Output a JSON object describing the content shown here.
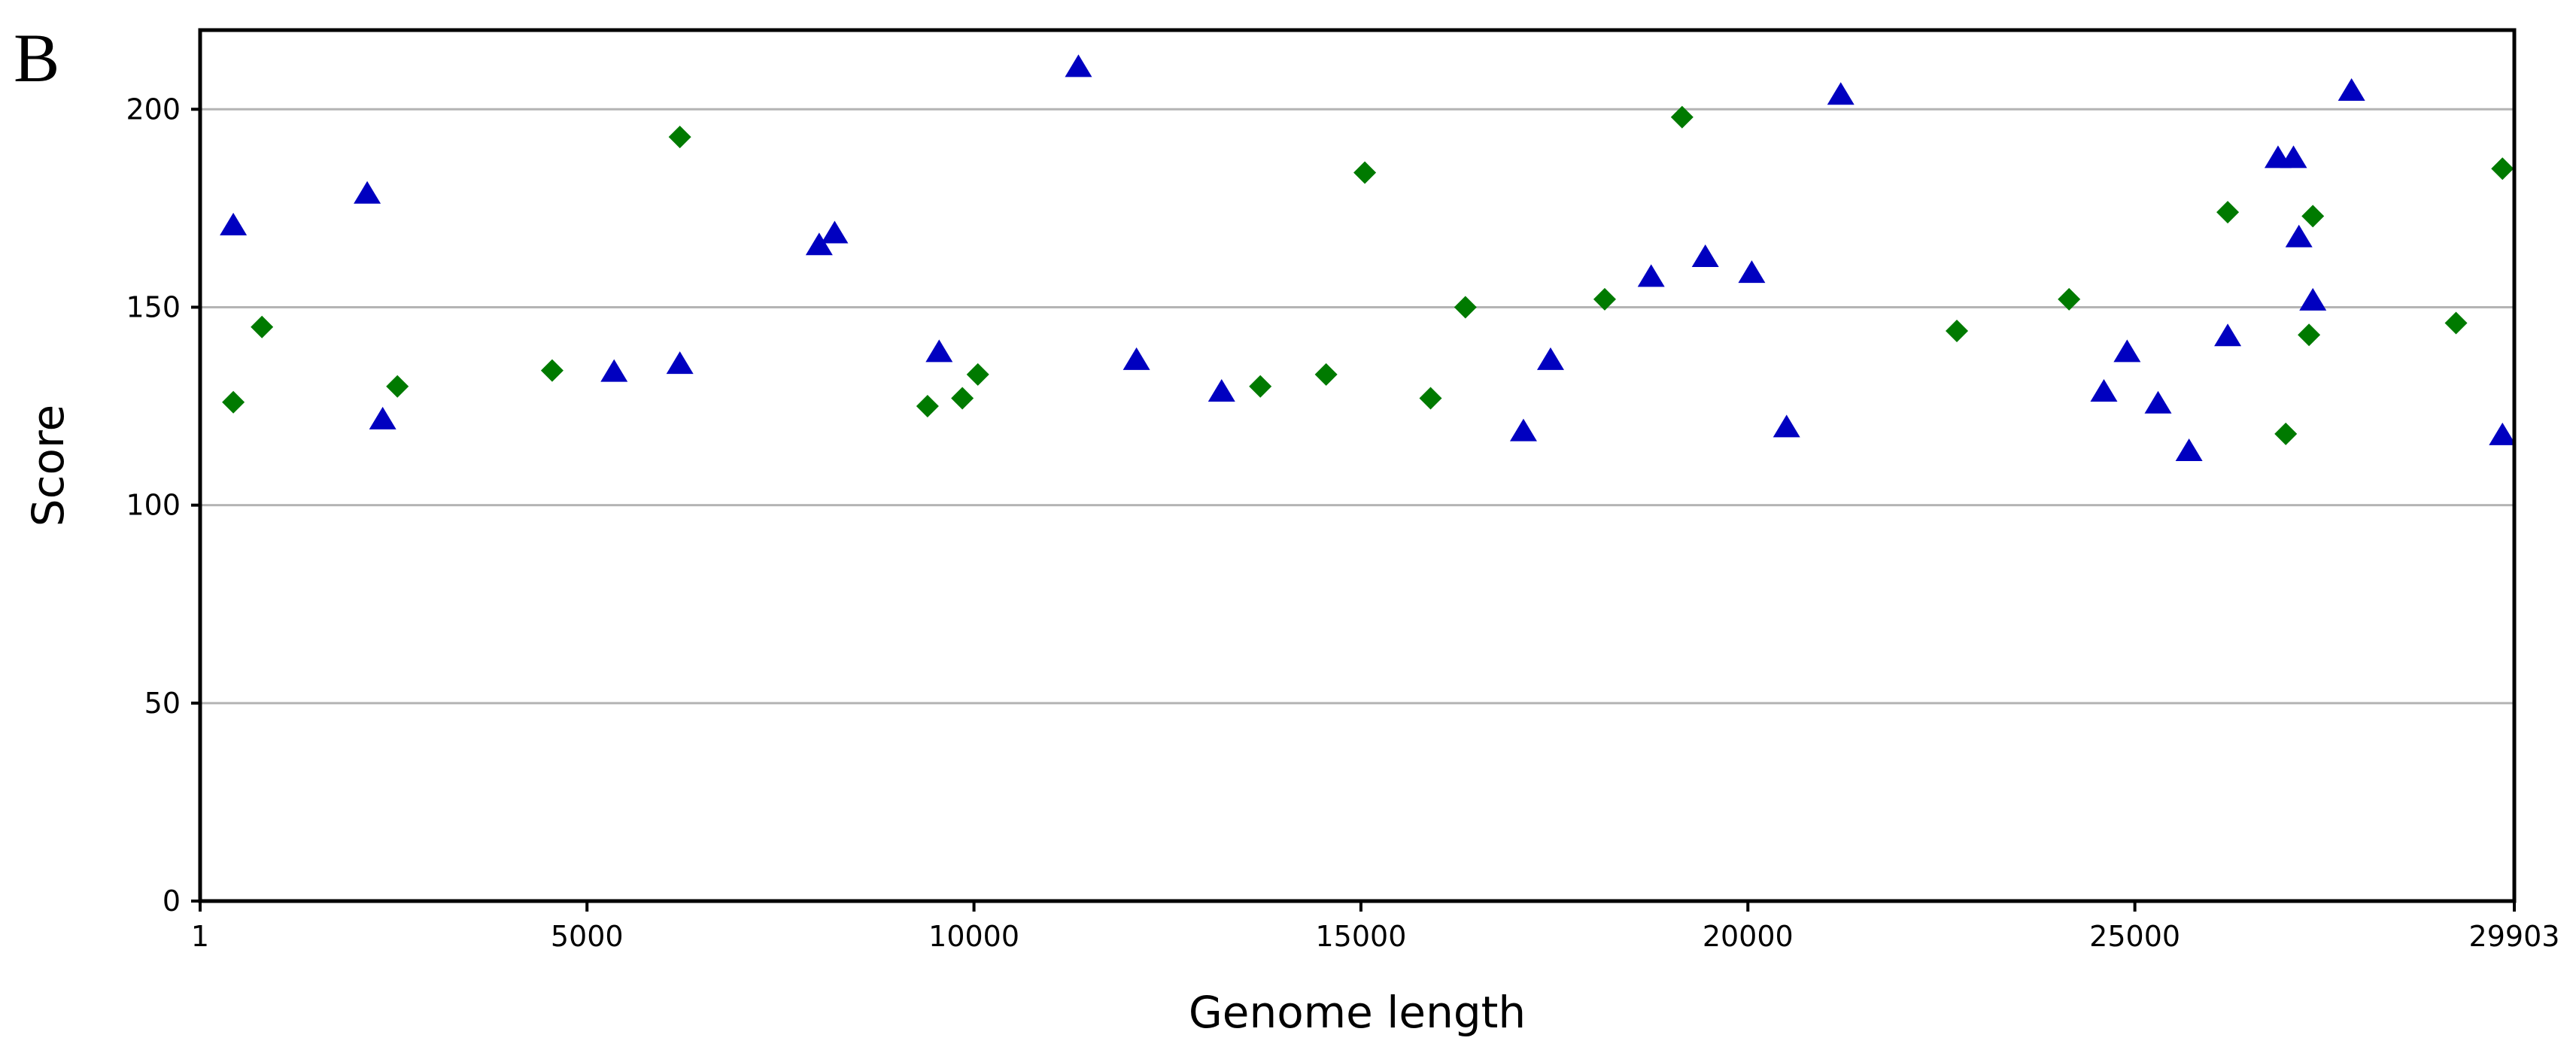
{
  "panel_label": "B",
  "chart_data": {
    "type": "scatter",
    "title": "",
    "xlabel": "Genome length",
    "ylabel": "Score",
    "xlim": [
      1,
      29903
    ],
    "ylim": [
      0,
      220
    ],
    "x_ticks": [
      1,
      5000,
      10000,
      15000,
      20000,
      25000,
      29903
    ],
    "x_tick_labels": [
      "1",
      "5000",
      "10000",
      "15000",
      "20000",
      "25000",
      "29903"
    ],
    "y_ticks": [
      0,
      50,
      100,
      150,
      200
    ],
    "y_tick_labels": [
      "0",
      "50",
      "100",
      "150",
      "200"
    ],
    "grid": "horizontal",
    "legend": "none",
    "series": [
      {
        "marker": "triangle",
        "color": "#0000c0",
        "points": [
          {
            "x": 430,
            "y": 171
          },
          {
            "x": 2160,
            "y": 179
          },
          {
            "x": 2360,
            "y": 122
          },
          {
            "x": 5350,
            "y": 134
          },
          {
            "x": 6200,
            "y": 136
          },
          {
            "x": 8000,
            "y": 166
          },
          {
            "x": 8200,
            "y": 169
          },
          {
            "x": 9550,
            "y": 139
          },
          {
            "x": 11350,
            "y": 211
          },
          {
            "x": 12100,
            "y": 137
          },
          {
            "x": 13200,
            "y": 129
          },
          {
            "x": 17100,
            "y": 119
          },
          {
            "x": 17450,
            "y": 137
          },
          {
            "x": 18750,
            "y": 158
          },
          {
            "x": 19450,
            "y": 163
          },
          {
            "x": 20050,
            "y": 159
          },
          {
            "x": 20500,
            "y": 120
          },
          {
            "x": 21200,
            "y": 204
          },
          {
            "x": 24600,
            "y": 129
          },
          {
            "x": 24900,
            "y": 139
          },
          {
            "x": 25300,
            "y": 126
          },
          {
            "x": 25700,
            "y": 114
          },
          {
            "x": 26200,
            "y": 143
          },
          {
            "x": 26850,
            "y": 188
          },
          {
            "x": 27050,
            "y": 188
          },
          {
            "x": 27120,
            "y": 168
          },
          {
            "x": 27300,
            "y": 152
          },
          {
            "x": 27800,
            "y": 205
          },
          {
            "x": 29750,
            "y": 118
          }
        ]
      },
      {
        "marker": "diamond",
        "color": "#007a00",
        "points": [
          {
            "x": 430,
            "y": 126
          },
          {
            "x": 800,
            "y": 145
          },
          {
            "x": 2550,
            "y": 130
          },
          {
            "x": 4550,
            "y": 134
          },
          {
            "x": 6200,
            "y": 193
          },
          {
            "x": 9400,
            "y": 125
          },
          {
            "x": 9850,
            "y": 127
          },
          {
            "x": 10050,
            "y": 133
          },
          {
            "x": 13700,
            "y": 130
          },
          {
            "x": 14550,
            "y": 133
          },
          {
            "x": 15050,
            "y": 184
          },
          {
            "x": 15900,
            "y": 127
          },
          {
            "x": 16350,
            "y": 150
          },
          {
            "x": 18150,
            "y": 152
          },
          {
            "x": 19150,
            "y": 198
          },
          {
            "x": 22700,
            "y": 144
          },
          {
            "x": 24150,
            "y": 152
          },
          {
            "x": 26200,
            "y": 174
          },
          {
            "x": 26950,
            "y": 118
          },
          {
            "x": 27250,
            "y": 143
          },
          {
            "x": 27300,
            "y": 173
          },
          {
            "x": 29150,
            "y": 146
          },
          {
            "x": 29750,
            "y": 185
          }
        ]
      }
    ]
  }
}
